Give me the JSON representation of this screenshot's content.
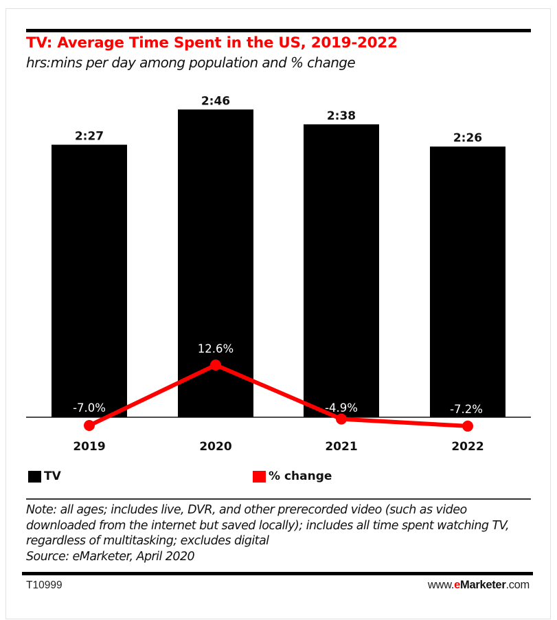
{
  "header": {
    "title": "TV: Average Time Spent in the US, 2019-2022",
    "subtitle": "hrs:mins per day among population and % change"
  },
  "colors": {
    "bar": "#000000",
    "line": "#ff0000",
    "title": "#ff0000"
  },
  "chart_data": {
    "type": "bar",
    "title": "TV: Average Time Spent in the US, 2019-2022",
    "subtitle": "hrs:mins per day among population and % change",
    "xlabel": "",
    "ylabel": "",
    "categories": [
      "2019",
      "2020",
      "2021",
      "2022"
    ],
    "series": [
      {
        "name": "TV",
        "type": "bar",
        "values_minutes": [
          147,
          166,
          158,
          146
        ],
        "labels": [
          "2:27",
          "2:46",
          "2:38",
          "2:26"
        ],
        "color": "#000000"
      },
      {
        "name": "% change",
        "type": "line",
        "values": [
          -7.0,
          12.6,
          -4.9,
          -7.2
        ],
        "labels": [
          "-7.0%",
          "12.6%",
          "-4.9%",
          "-7.2%"
        ],
        "color": "#ff0000"
      }
    ],
    "grid": false,
    "legend": {
      "position": "bottom",
      "entries": [
        "TV",
        "% change"
      ]
    }
  },
  "legend": {
    "tv_label": "TV",
    "change_label": "% change"
  },
  "note": {
    "text": "Note: all ages; includes live, DVR, and other prerecorded video (such as video downloaded from the internet but saved locally); includes all time spent watching TV, regardless of multitasking; excludes digital",
    "source": "Source: eMarketer, April 2020"
  },
  "footer": {
    "chart_id": "T10999",
    "site_prefix": "www.",
    "site_e": "e",
    "site_brand": "Marketer",
    "site_suffix": ".com"
  }
}
